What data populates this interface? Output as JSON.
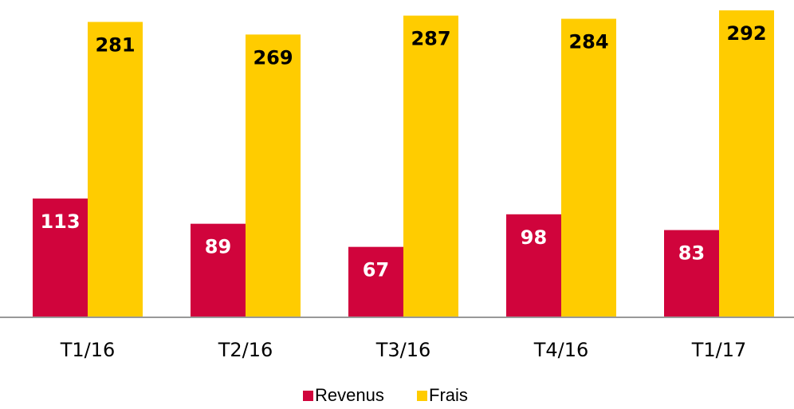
{
  "chart_data": {
    "type": "bar",
    "categories": [
      "T1/16",
      "T2/16",
      "T3/16",
      "T4/16",
      "T1/17"
    ],
    "series": [
      {
        "name": "Revenus",
        "color": "#d0043c",
        "values": [
          113,
          89,
          67,
          98,
          83
        ]
      },
      {
        "name": "Frais",
        "color": "#ffcc00",
        "values": [
          281,
          269,
          287,
          284,
          292
        ]
      }
    ],
    "legend": "bottom"
  }
}
